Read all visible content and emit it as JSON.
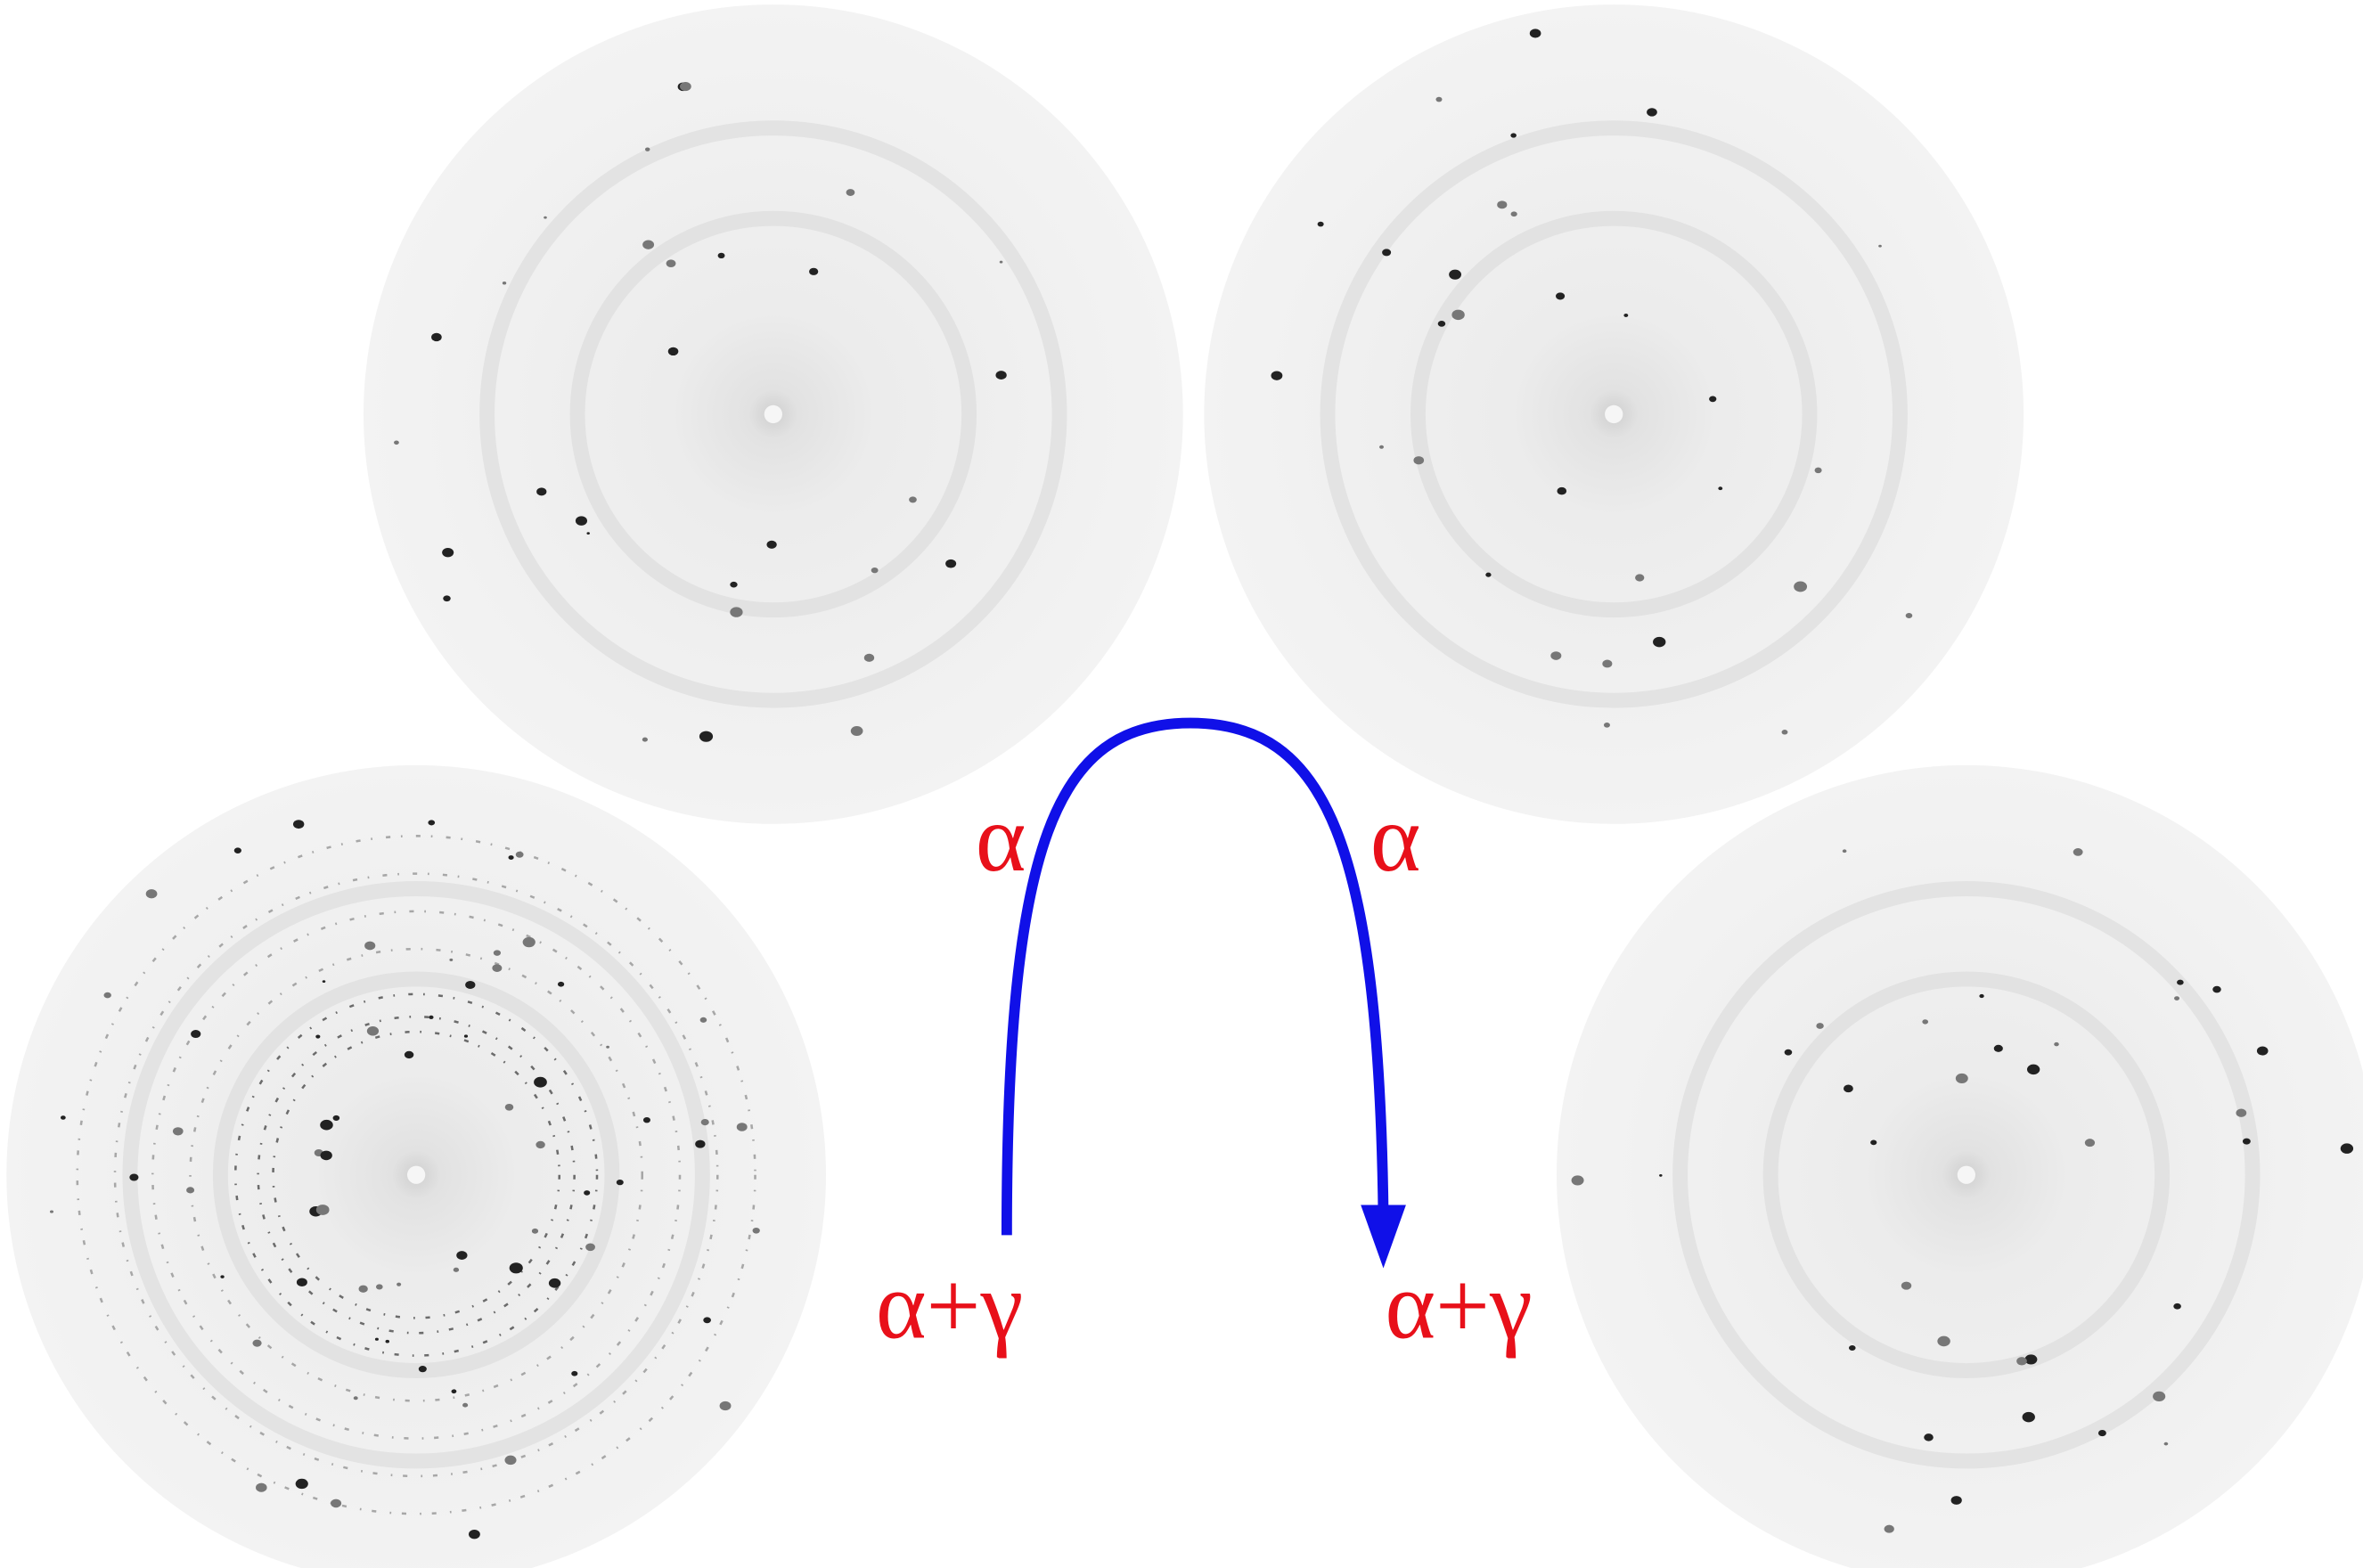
{
  "labels": {
    "top_left": "α",
    "top_right": "α",
    "bottom_left": "α+γ",
    "bottom_right": "α+γ"
  }
}
